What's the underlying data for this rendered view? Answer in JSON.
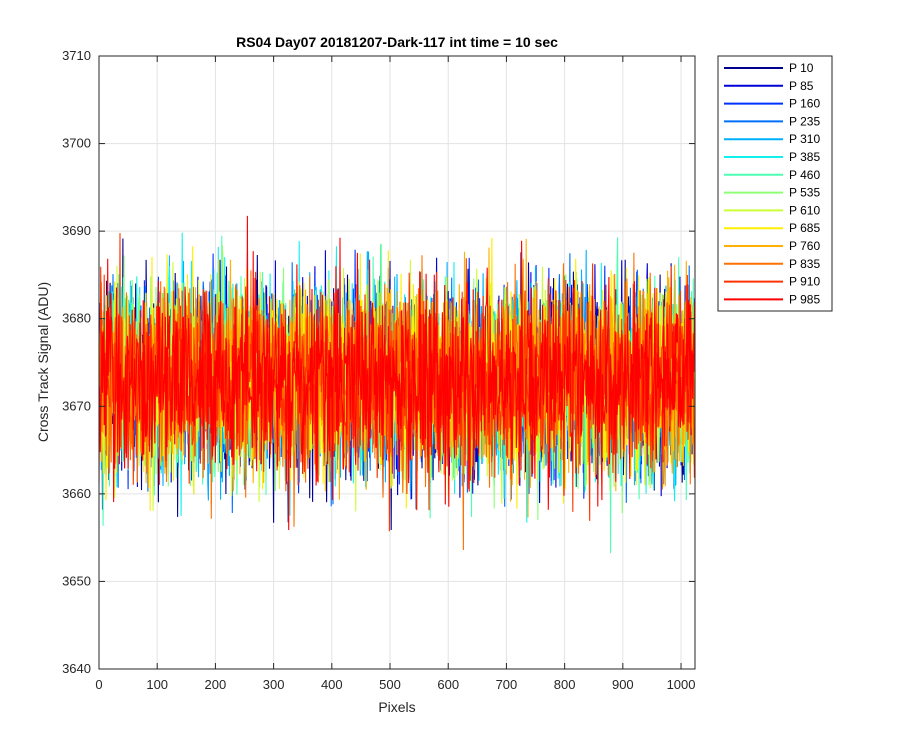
{
  "chart_data": {
    "type": "line",
    "title": "RS04 Day07 20181207-Dark-117 int time = 10 sec",
    "xlabel": "Pixels",
    "ylabel": "Cross Track Signal (ADU)",
    "xlim": [
      0,
      1024
    ],
    "ylim": [
      3640,
      3710
    ],
    "xticks": [
      0,
      100,
      200,
      300,
      400,
      500,
      600,
      700,
      800,
      900,
      1000
    ],
    "yticks": [
      3640,
      3650,
      3660,
      3670,
      3680,
      3690,
      3700,
      3710
    ],
    "grid": true,
    "legend_position": "outside-top-right",
    "x_count": 1024,
    "noise_center": 3673,
    "noise_range": [
      3641,
      3702
    ],
    "series": [
      {
        "name": "P 10",
        "color": "#00008f"
      },
      {
        "name": "P 85",
        "color": "#0000d9"
      },
      {
        "name": "P 160",
        "color": "#0033ff"
      },
      {
        "name": "P 235",
        "color": "#0070ff"
      },
      {
        "name": "P 310",
        "color": "#00b0ff"
      },
      {
        "name": "P 385",
        "color": "#12f0ee"
      },
      {
        "name": "P 460",
        "color": "#4dffb3"
      },
      {
        "name": "P 535",
        "color": "#8cff73"
      },
      {
        "name": "P 610",
        "color": "#ccff33"
      },
      {
        "name": "P 685",
        "color": "#ffee00"
      },
      {
        "name": "P 760",
        "color": "#ffb000"
      },
      {
        "name": "P 835",
        "color": "#ff7000"
      },
      {
        "name": "P 910",
        "color": "#ff3300"
      },
      {
        "name": "P 985",
        "color": "#ff0000"
      }
    ]
  }
}
